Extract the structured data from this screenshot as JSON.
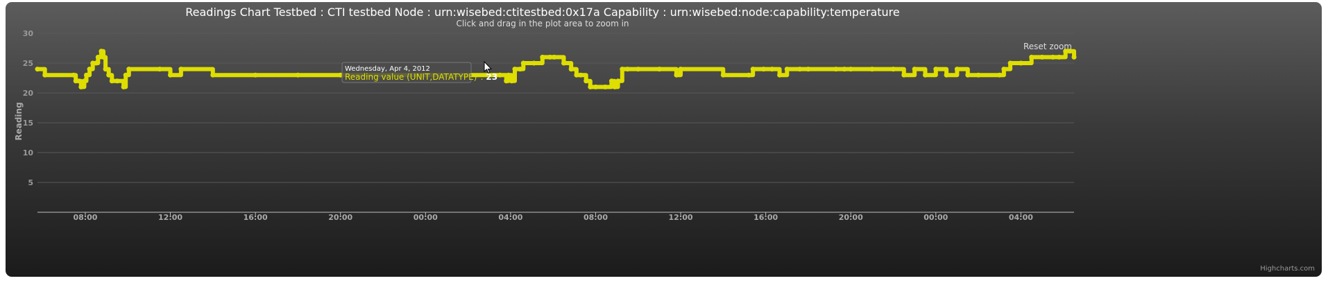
{
  "chart_data": {
    "type": "line",
    "title": "Readings Chart Testbed : CTI testbed Node : urn:wisebed:ctitestbed:0x17a Capability : urn:wisebed:node:capability:temperature",
    "subtitle": "Click and drag in the plot area to zoom in",
    "ylabel": "Reading",
    "xlabel": "",
    "ylim": [
      0,
      30
    ],
    "y_ticks": [
      "5",
      "10",
      "15",
      "20",
      "25",
      "30"
    ],
    "x_ticks": [
      {
        "label": "08:00",
        "t": 8
      },
      {
        "label": "12:00",
        "t": 12
      },
      {
        "label": "16:00",
        "t": 16
      },
      {
        "label": "20:00",
        "t": 20
      },
      {
        "label": "00:00",
        "t": 24
      },
      {
        "label": "04:00",
        "t": 28
      },
      {
        "label": "08:00",
        "t": 32
      },
      {
        "label": "12:00",
        "t": 36
      },
      {
        "label": "16:00",
        "t": 40
      },
      {
        "label": "20:00",
        "t": 44
      },
      {
        "label": "00:00",
        "t": 48
      },
      {
        "label": "04:00",
        "t": 52
      }
    ],
    "xlim": [
      5.75,
      54.5
    ],
    "grid": true,
    "legend": "none",
    "series": [
      {
        "name": "Reading value (UNIT,DATATYPE)",
        "color": "#dede00",
        "x": [
          5.75,
          6.1,
          7.45,
          7.55,
          7.7,
          7.8,
          7.95,
          8.05,
          8.2,
          8.35,
          8.5,
          8.6,
          8.75,
          8.85,
          8.95,
          9.1,
          9.25,
          9.5,
          9.8,
          9.9,
          10.05,
          11.5,
          12.0,
          12.5,
          14.0,
          16.0,
          18.0,
          20.0,
          22.0,
          24.0,
          26.0,
          27.5,
          27.8,
          27.9,
          28.05,
          28.2,
          28.45,
          28.6,
          29.1,
          29.5,
          29.85,
          30.05,
          30.5,
          30.85,
          31.1,
          31.3,
          31.55,
          31.75,
          32.0,
          32.45,
          32.75,
          32.9,
          33.05,
          33.25,
          33.5,
          34.0,
          35.0,
          35.8,
          36.0,
          38.0,
          39.2,
          39.4,
          39.9,
          40.3,
          40.65,
          41.0,
          41.6,
          42.0,
          43.3,
          43.7,
          44.0,
          45.0,
          46.0,
          46.5,
          47.0,
          47.5,
          48.0,
          48.5,
          49.0,
          49.5,
          50.0,
          51.0,
          51.2,
          51.5,
          52.0,
          52.5,
          53.0,
          53.5,
          53.8,
          54.1,
          54.3,
          54.5
        ],
        "y": [
          24,
          23,
          23,
          22,
          22,
          21,
          22,
          23,
          24,
          25,
          25,
          26,
          27,
          26,
          24,
          23,
          22,
          22,
          21,
          23,
          24,
          24,
          23,
          24,
          23,
          23,
          23,
          23,
          23,
          23,
          23,
          23,
          22,
          23,
          22,
          24,
          24,
          25,
          25,
          26,
          26,
          26,
          25,
          24,
          23,
          23,
          22,
          21,
          21,
          21,
          22,
          21,
          22,
          24,
          24,
          24,
          24,
          23,
          24,
          23,
          23,
          24,
          24,
          24,
          23,
          24,
          24,
          24,
          24,
          24,
          24,
          24,
          24,
          23,
          24,
          23,
          24,
          23,
          24,
          23,
          23,
          23,
          24,
          25,
          25,
          26,
          26,
          26,
          26,
          27,
          27,
          26
        ]
      }
    ]
  },
  "tooltip": {
    "date": "Wednesday, Apr 4, 2012",
    "series_label": "Reading value (UNIT,DATATYPE)",
    "value": "23"
  },
  "reset_zoom_label": "Reset zoom",
  "credits": "Highcharts.com"
}
